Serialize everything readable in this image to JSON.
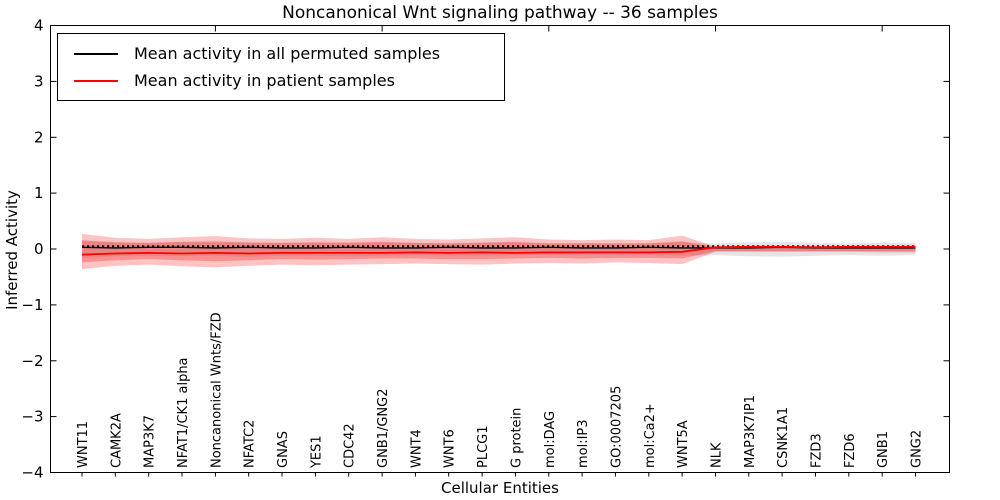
{
  "chart": {
    "title": "Noncanonical Wnt signaling pathway -- 36 samples",
    "xlabel": "Cellular Entities",
    "ylabel": "Inferred Activity",
    "legend": {
      "items": [
        {
          "label": "Mean activity in all permuted samples",
          "color": "#000000"
        },
        {
          "label": "Mean activity in patient samples",
          "color": "#ff0000"
        }
      ]
    }
  },
  "chart_data": {
    "type": "line",
    "title": "Noncanonical Wnt signaling pathway -- 36 samples",
    "xlabel": "Cellular Entities",
    "ylabel": "Inferred Activity",
    "ylim": [
      -4,
      4
    ],
    "yticks": [
      4,
      3,
      2,
      1,
      0,
      -1,
      -2,
      -3,
      -4
    ],
    "grid": false,
    "legend_position": "upper left",
    "categories": [
      "WNT11",
      "CAMK2A",
      "MAP3K7",
      "NFAT1/CK1 alpha",
      "Noncanonical Wnts/FZD",
      "NFATC2",
      "GNAS",
      "YES1",
      "CDC42",
      "GNB1/GNG2",
      "WNT4",
      "WNT6",
      "PLCG1",
      "G protein",
      "mol:DAG",
      "mol:IP3",
      "GO:0007205",
      "mol:Ca2+",
      "WNT5A",
      "NLK",
      "MAP3K7IP1",
      "CSNK1A1",
      "FZD3",
      "FZD6",
      "GNB1",
      "GNG2"
    ],
    "series": [
      {
        "name": "Mean activity in all permuted samples",
        "role": "permuted_mean",
        "color": "#000000",
        "values": [
          0.03,
          0.02,
          0.03,
          0.03,
          0.02,
          0.03,
          0.02,
          0.02,
          0.03,
          0.02,
          0.02,
          0.03,
          0.02,
          0.02,
          0.03,
          0.02,
          0.02,
          0.03,
          0.02,
          0.02,
          0.02,
          0.03,
          0.02,
          0.02,
          0.02,
          0.02
        ]
      },
      {
        "name": "Permuted samples band upper",
        "role": "permuted_band_upper",
        "color": "rgba(0,0,0,0.10)",
        "values": [
          0.14,
          0.12,
          0.11,
          0.12,
          0.11,
          0.13,
          0.11,
          0.11,
          0.12,
          0.11,
          0.11,
          0.11,
          0.12,
          0.11,
          0.1,
          0.11,
          0.1,
          0.11,
          0.12,
          0.1,
          0.12,
          0.13,
          0.11,
          0.1,
          0.11,
          0.11
        ]
      },
      {
        "name": "Permuted samples band lower",
        "role": "permuted_band_lower",
        "color": "rgba(0,0,0,0.10)",
        "values": [
          -0.16,
          -0.13,
          -0.12,
          -0.13,
          -0.12,
          -0.14,
          -0.12,
          -0.12,
          -0.13,
          -0.12,
          -0.11,
          -0.12,
          -0.12,
          -0.11,
          -0.11,
          -0.11,
          -0.11,
          -0.11,
          -0.12,
          -0.11,
          -0.13,
          -0.14,
          -0.12,
          -0.11,
          -0.12,
          -0.11
        ]
      },
      {
        "name": "Mean activity in patient samples",
        "role": "patient_mean",
        "color": "#ff0000",
        "values": [
          -0.1,
          -0.08,
          -0.07,
          -0.08,
          -0.07,
          -0.08,
          -0.07,
          -0.07,
          -0.07,
          -0.07,
          -0.06,
          -0.07,
          -0.06,
          -0.07,
          -0.06,
          -0.06,
          -0.06,
          -0.06,
          -0.05,
          0.03,
          0.04,
          0.04,
          0.03,
          0.04,
          0.04,
          0.04
        ]
      },
      {
        "name": "Patient samples outer band upper",
        "role": "patient_outer_upper",
        "color": "rgba(255,40,40,0.28)",
        "values": [
          0.27,
          0.2,
          0.18,
          0.21,
          0.23,
          0.19,
          0.18,
          0.2,
          0.18,
          0.21,
          0.18,
          0.17,
          0.19,
          0.21,
          0.17,
          0.16,
          0.17,
          0.16,
          0.24,
          0.04,
          0.04,
          0.04,
          0.04,
          0.04,
          0.05,
          0.05
        ]
      },
      {
        "name": "Patient samples outer band lower",
        "role": "patient_outer_lower",
        "color": "rgba(255,40,40,0.28)",
        "values": [
          -0.36,
          -0.3,
          -0.28,
          -0.31,
          -0.33,
          -0.3,
          -0.28,
          -0.29,
          -0.28,
          -0.27,
          -0.26,
          -0.27,
          -0.28,
          -0.26,
          -0.25,
          -0.26,
          -0.24,
          -0.25,
          -0.27,
          -0.05,
          -0.05,
          -0.05,
          -0.05,
          -0.05,
          -0.06,
          -0.06
        ]
      },
      {
        "name": "Patient samples inner band upper",
        "role": "patient_inner_upper",
        "color": "rgba(230,30,30,0.30)",
        "values": [
          0.16,
          0.12,
          0.11,
          0.13,
          0.14,
          0.11,
          0.11,
          0.12,
          0.11,
          0.13,
          0.11,
          0.1,
          0.11,
          0.13,
          0.1,
          0.1,
          0.1,
          0.1,
          0.14,
          0.03,
          0.03,
          0.03,
          0.03,
          0.03,
          0.03,
          0.03
        ]
      },
      {
        "name": "Patient samples inner band lower",
        "role": "patient_inner_lower",
        "color": "rgba(230,30,30,0.30)",
        "values": [
          -0.24,
          -0.2,
          -0.18,
          -0.2,
          -0.22,
          -0.2,
          -0.18,
          -0.19,
          -0.18,
          -0.17,
          -0.17,
          -0.18,
          -0.18,
          -0.17,
          -0.16,
          -0.17,
          -0.16,
          -0.16,
          -0.17,
          -0.04,
          -0.04,
          -0.04,
          -0.04,
          -0.04,
          -0.04,
          -0.04
        ]
      },
      {
        "name": "Dotted reference line",
        "role": "dotted_reference",
        "color": "#111111",
        "values": [
          0.05,
          0.05,
          0.05,
          0.05,
          0.05,
          0.05,
          0.05,
          0.05,
          0.05,
          0.05,
          0.05,
          0.05,
          0.05,
          0.05,
          0.05,
          0.05,
          0.05,
          0.05,
          0.05,
          0.05,
          0.05,
          0.05,
          0.05,
          0.05,
          0.05,
          0.05
        ]
      }
    ]
  }
}
